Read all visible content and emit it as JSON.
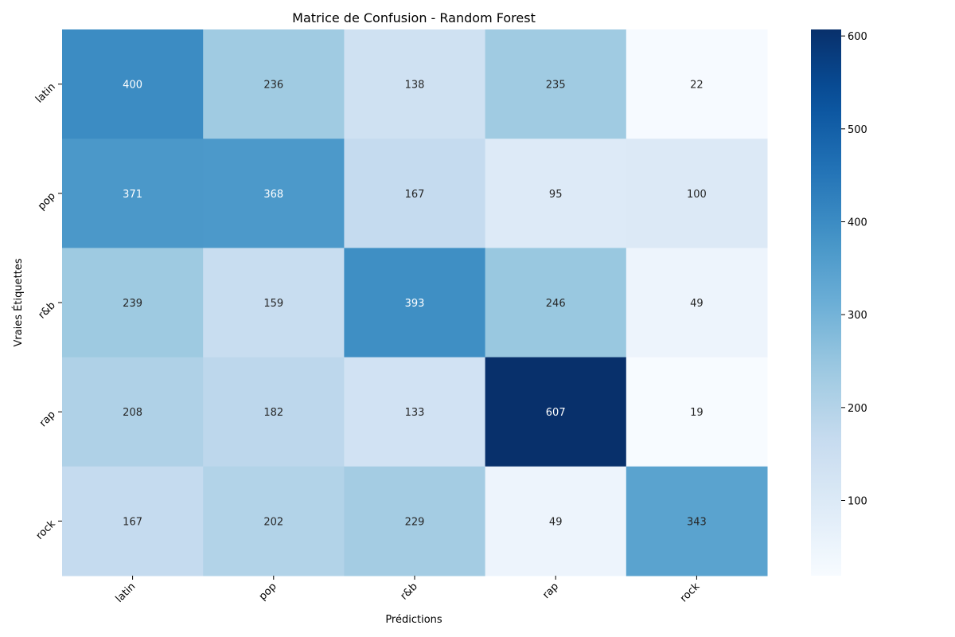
{
  "chart_data": {
    "type": "heatmap",
    "title": "Matrice de Confusion - Random Forest",
    "xlabel": "Prédictions",
    "ylabel": "Vraies Étiquettes",
    "x_categories": [
      "latin",
      "pop",
      "r&b",
      "rap",
      "rock"
    ],
    "y_categories": [
      "latin",
      "pop",
      "r&b",
      "rap",
      "rock"
    ],
    "matrix": [
      [
        400,
        236,
        138,
        235,
        22
      ],
      [
        371,
        368,
        167,
        95,
        100
      ],
      [
        239,
        159,
        393,
        246,
        49
      ],
      [
        208,
        182,
        133,
        607,
        19
      ],
      [
        167,
        202,
        229,
        49,
        343
      ]
    ],
    "colormap": "Blues",
    "vmin": 19,
    "vmax": 607,
    "colorbar_ticks": [
      100,
      200,
      300,
      400,
      500,
      600
    ],
    "colorbar_tick_labels": [
      "100",
      "200",
      "300",
      "400",
      "500",
      "600"
    ]
  }
}
